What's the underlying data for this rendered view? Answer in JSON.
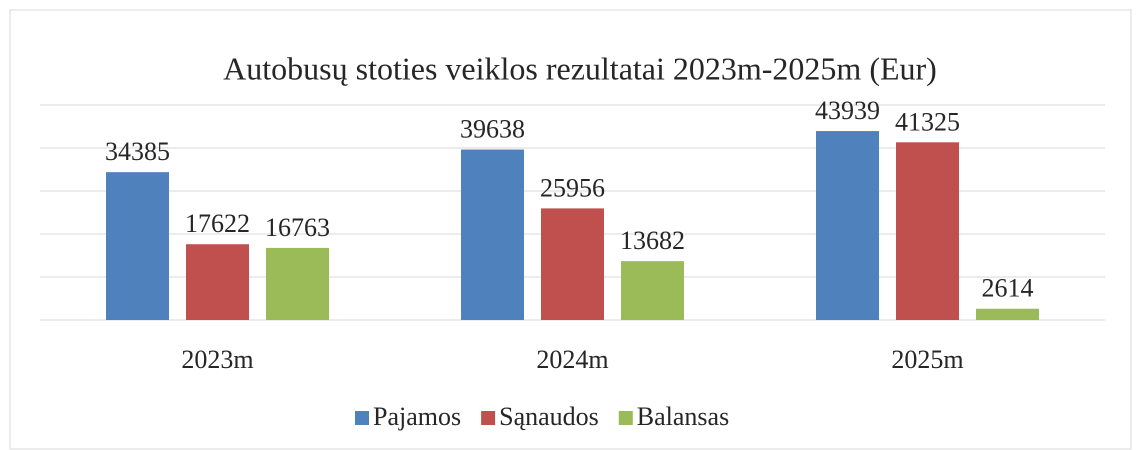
{
  "chart_data": {
    "type": "bar",
    "title": "Autobusų stoties veiklos rezultatai 2023m-2025m (Eur)",
    "categories": [
      "2023m",
      "2024m",
      "2025m"
    ],
    "series": [
      {
        "name": "Pajamos",
        "color": "#4f81bd",
        "values": [
          34385,
          39638,
          43939
        ]
      },
      {
        "name": "Sąnaudos",
        "color": "#c0504d",
        "values": [
          17622,
          25956,
          41325
        ]
      },
      {
        "name": "Balansas",
        "color": "#9bbb59",
        "values": [
          16763,
          13682,
          2614
        ]
      }
    ],
    "ylim": [
      0,
      50000
    ],
    "yticks": [
      0,
      10000,
      20000,
      30000,
      40000,
      50000
    ],
    "grid": true
  }
}
